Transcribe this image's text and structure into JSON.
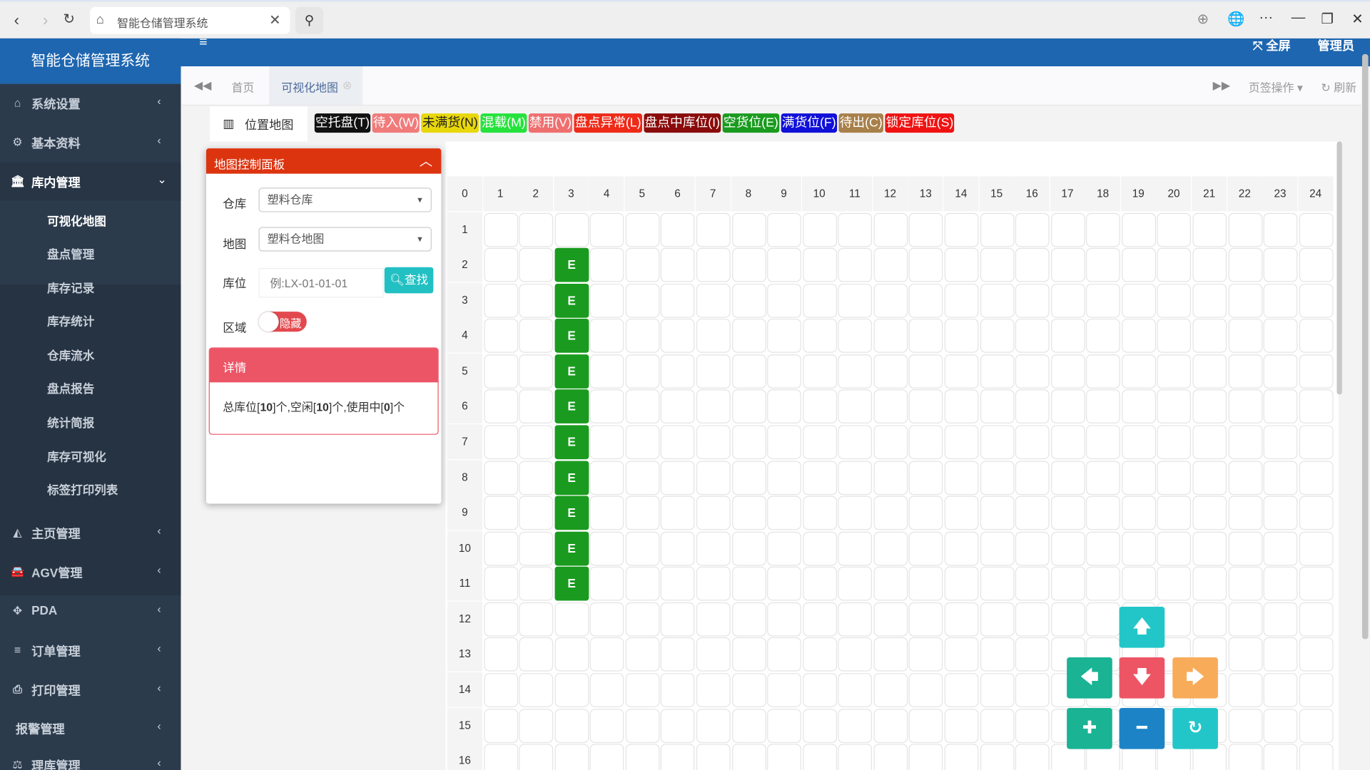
{
  "browser": {
    "tab_title": "智能仓储管理系统",
    "icons": [
      "back-icon",
      "forward-icon",
      "reload-icon",
      "warehouse-icon",
      "close-icon",
      "search-icon",
      "download-icon",
      "globe-icon",
      "more-icon",
      "minimize-icon",
      "restore-icon",
      "close-window-icon"
    ]
  },
  "header": {
    "app_title": "智能仓储管理系统",
    "fullscreen_label": "全屏",
    "user_label": "管理员"
  },
  "sidebar": {
    "items": [
      {
        "label": "系统设置",
        "icon": "home-icon",
        "glyph": "⌂"
      },
      {
        "label": "基本资料",
        "icon": "gear-icon",
        "glyph": "⚙"
      },
      {
        "label": "库内管理",
        "icon": "bank-icon",
        "glyph": "🏛"
      }
    ],
    "submenu": [
      "可视化地图",
      "盘点管理",
      "库存记录",
      "库存统计",
      "仓库流水",
      "盘点报告",
      "统计简报",
      "库存可视化",
      "标签打印列表"
    ],
    "active_sub": "可视化地图",
    "items2": [
      {
        "label": "主页管理",
        "icon": "area-chart-icon",
        "glyph": "◭"
      },
      {
        "label": "AGV管理",
        "icon": "car-icon",
        "glyph": "🚘"
      },
      {
        "label": "PDA",
        "icon": "move-icon",
        "glyph": "✥"
      },
      {
        "label": "订单管理",
        "icon": "list-icon",
        "glyph": "≡"
      },
      {
        "label": "打印管理",
        "icon": "print-icon",
        "glyph": "⎙"
      },
      {
        "label": "报警管理",
        "icon": "",
        "glyph": ""
      },
      {
        "label": "理库管理",
        "icon": "balance-icon",
        "glyph": "⚖"
      }
    ]
  },
  "tabs": {
    "home": "首页",
    "active": "可视化地图",
    "page_ops": "页签操作",
    "refresh": "刷新"
  },
  "map": {
    "nav_label": "位置地图",
    "legend": [
      {
        "label": "空托盘(T)",
        "color": "#111111",
        "text": "#ffffff"
      },
      {
        "label": "待入(W)",
        "color": "#f07b7b",
        "text": "#ffffff"
      },
      {
        "label": "未满货(N)",
        "color": "#e8d70a",
        "text": "#222222"
      },
      {
        "label": "混载(M)",
        "color": "#25e23c",
        "text": "#ffffff"
      },
      {
        "label": "禁用(V)",
        "color": "#ef6f6f",
        "text": "#ffffff"
      },
      {
        "label": "盘点异常(L)",
        "color": "#ee2a18",
        "text": "#ffffff"
      },
      {
        "label": "盘点中库位(I)",
        "color": "#8a0b0b",
        "text": "#ffffff"
      },
      {
        "label": "空货位(E)",
        "color": "#1a9b1f",
        "text": "#ffffff"
      },
      {
        "label": "满货位(F)",
        "color": "#1010d8",
        "text": "#ffffff"
      },
      {
        "label": "待出(C)",
        "color": "#a8804a",
        "text": "#ffffff"
      },
      {
        "label": "锁定库位(S)",
        "color": "#f01212",
        "text": "#ffffff"
      }
    ],
    "columns": [
      0,
      1,
      2,
      3,
      4,
      5,
      6,
      7,
      8,
      9,
      10,
      11,
      12,
      13,
      14,
      15,
      16,
      17,
      18,
      19,
      20,
      21,
      22,
      23,
      24
    ],
    "rows": [
      1,
      2,
      3,
      4,
      5,
      6,
      7,
      8,
      9,
      10,
      11,
      12,
      13,
      14,
      15,
      16
    ],
    "locations": [
      {
        "row": 2,
        "col": 3,
        "code": "E"
      },
      {
        "row": 3,
        "col": 3,
        "code": "E"
      },
      {
        "row": 4,
        "col": 3,
        "code": "E"
      },
      {
        "row": 5,
        "col": 3,
        "code": "E"
      },
      {
        "row": 6,
        "col": 3,
        "code": "E"
      },
      {
        "row": 7,
        "col": 3,
        "code": "E"
      },
      {
        "row": 8,
        "col": 3,
        "code": "E"
      },
      {
        "row": 9,
        "col": 3,
        "code": "E"
      },
      {
        "row": 10,
        "col": 3,
        "code": "E"
      },
      {
        "row": 11,
        "col": 3,
        "code": "E"
      }
    ],
    "empty_color": "#1a9b1f"
  },
  "panel": {
    "title": "地图控制面板",
    "warehouse_label": "仓库",
    "warehouse_value": "塑料仓库",
    "map_label": "地图",
    "map_value": "塑料仓地图",
    "location_label": "库位",
    "location_placeholder": "例:LX-01-01-01",
    "find_label": "查找",
    "area_label": "区域",
    "area_toggle": "隐藏",
    "detail_title": "详情",
    "detail_total_pre": "总库位[",
    "detail_total": "10",
    "detail_free_pre": "]个,空闲[",
    "detail_free": "10",
    "detail_used_pre": "]个,使用中[",
    "detail_used": "0",
    "detail_end": "]个"
  },
  "controls": [
    {
      "name": "up-button",
      "icon": "arrow-up-icon",
      "glyph": "🡅",
      "color": "#23c6c8"
    },
    {
      "name": "left-button",
      "icon": "arrow-left-icon",
      "glyph": "🡄",
      "color": "#1ab394"
    },
    {
      "name": "down-button",
      "icon": "arrow-down-icon",
      "glyph": "🡇",
      "color": "#ed5565"
    },
    {
      "name": "right-button",
      "icon": "arrow-right-icon",
      "glyph": "🡆",
      "color": "#f8ac59"
    },
    {
      "name": "zoom-in-button",
      "icon": "plus-icon",
      "glyph": "✚",
      "color": "#1ab394"
    },
    {
      "name": "zoom-out-button",
      "icon": "minus-icon",
      "glyph": "━",
      "color": "#1c84c6"
    },
    {
      "name": "reset-button",
      "icon": "undo-icon",
      "glyph": "↻",
      "color": "#23c6c8"
    }
  ]
}
